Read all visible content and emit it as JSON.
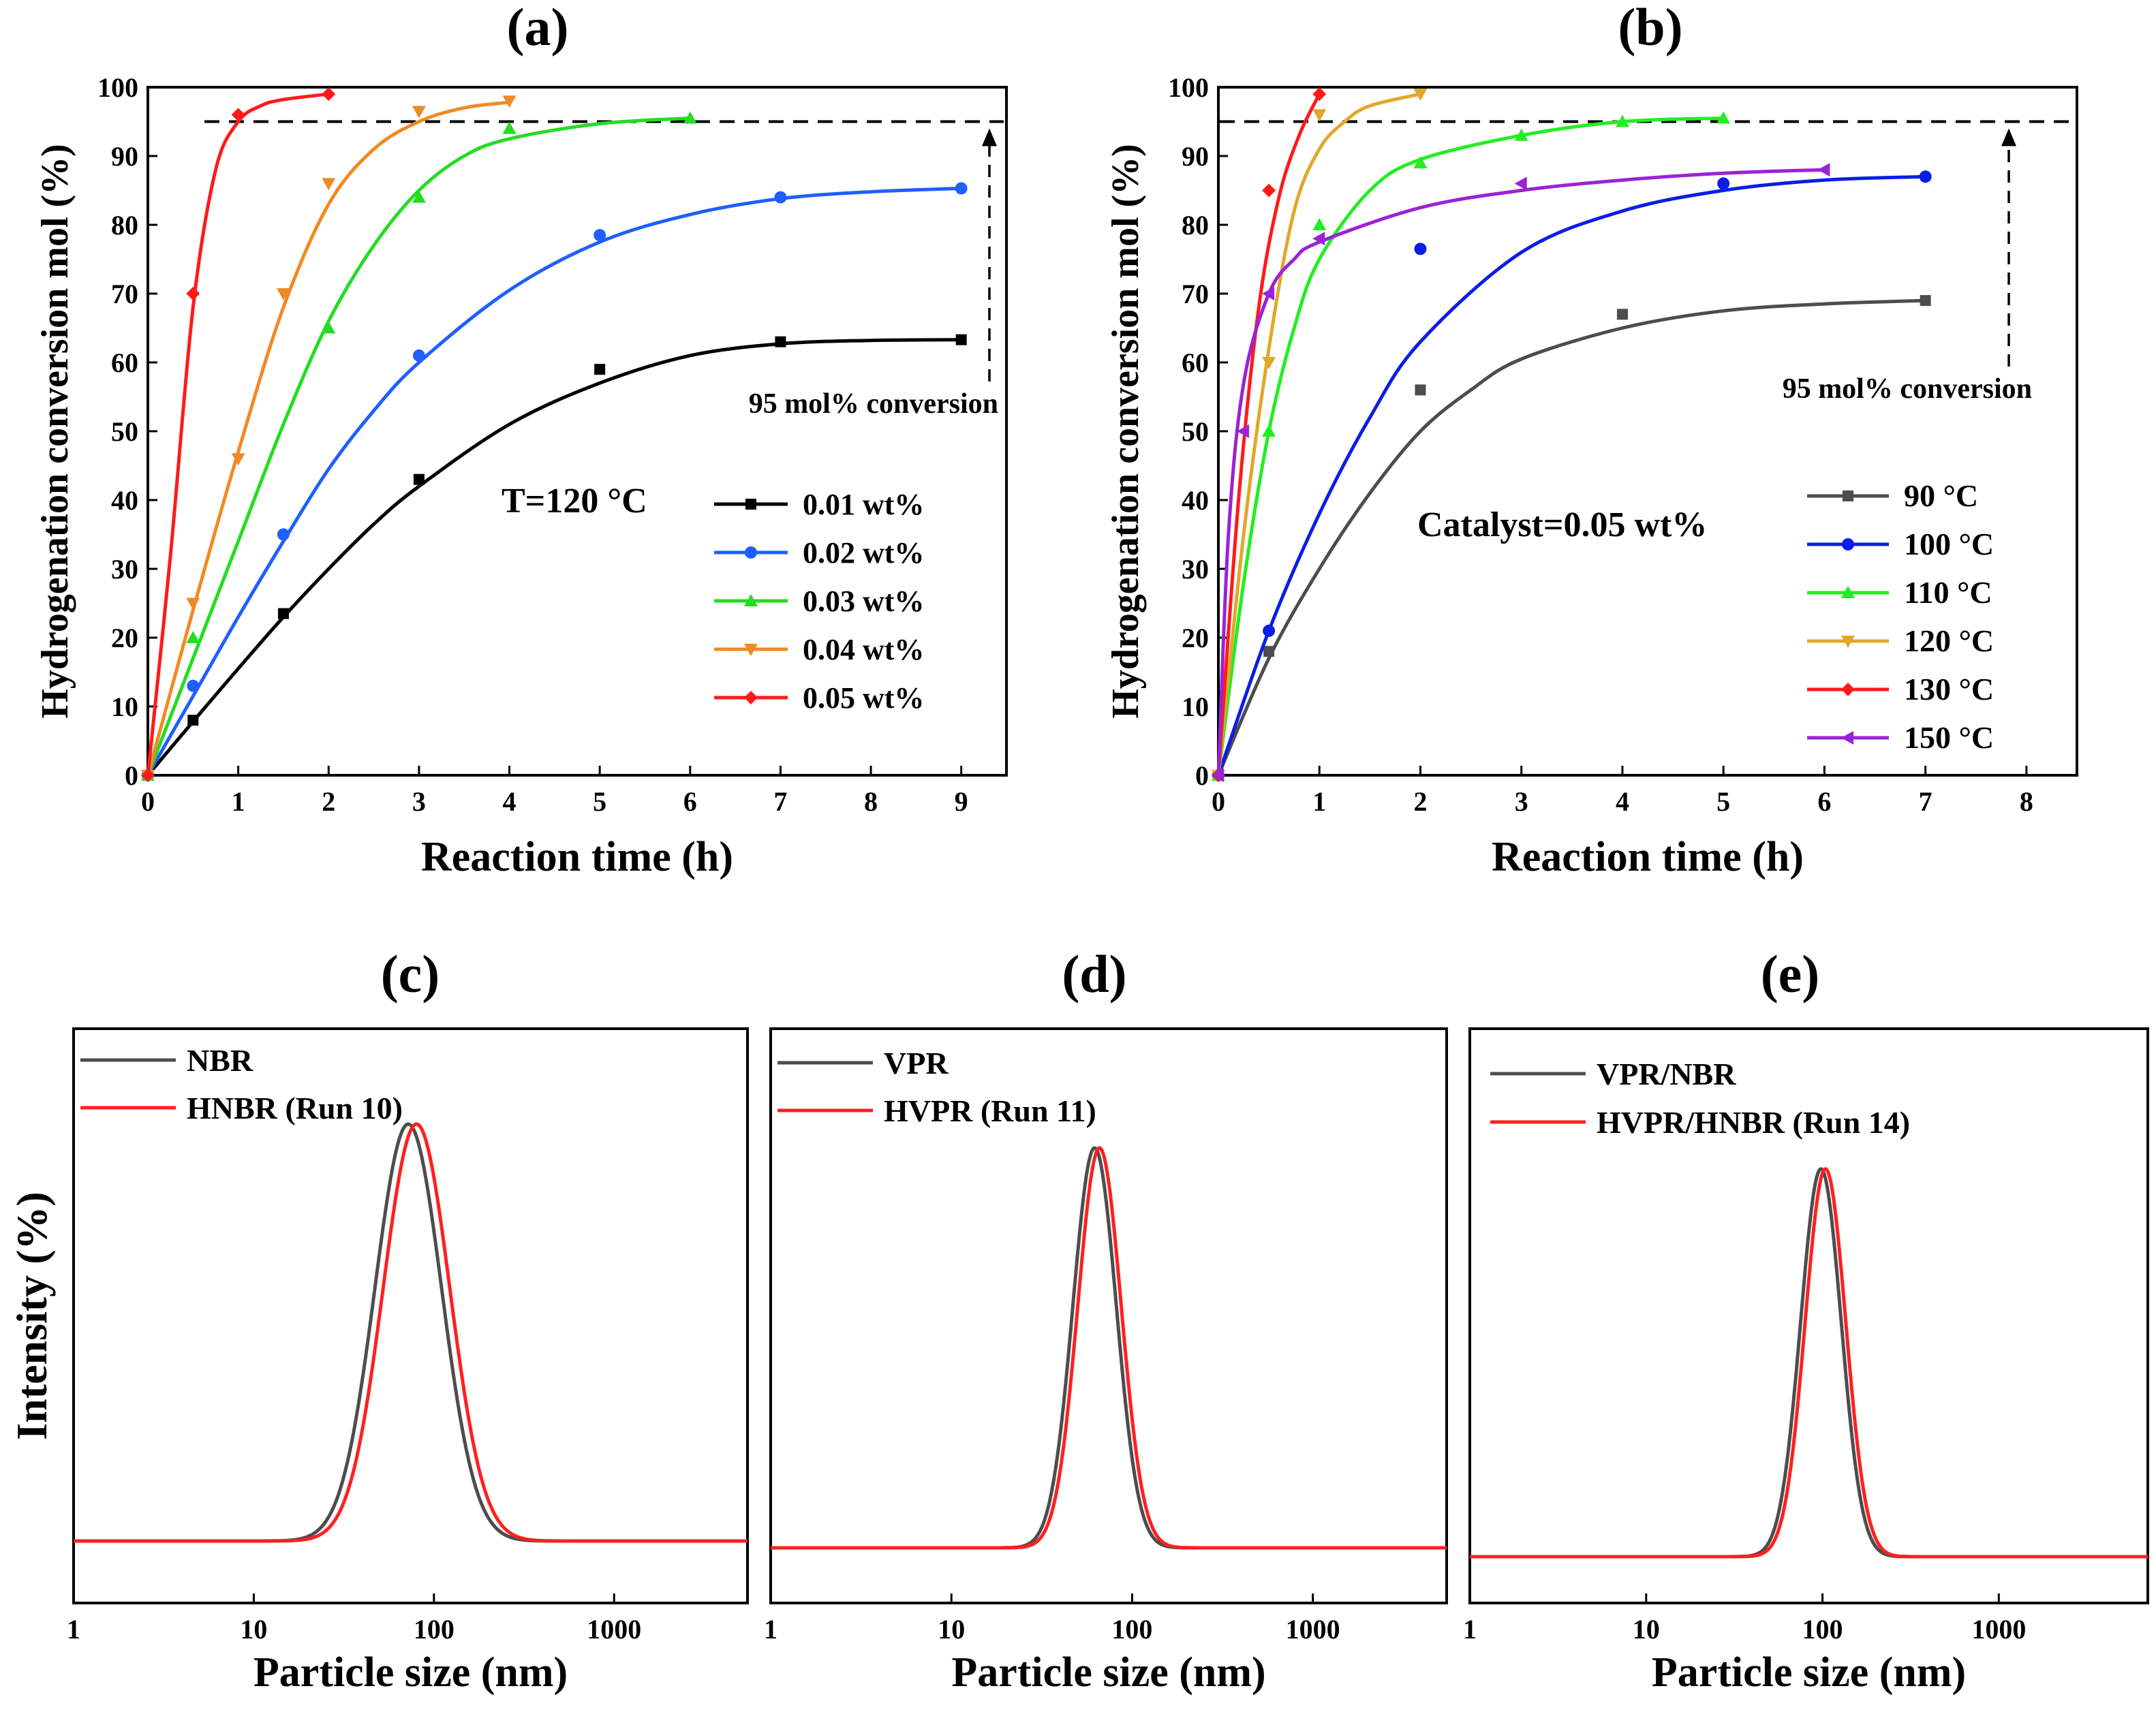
{
  "chart_data": [
    {
      "id": "a",
      "type": "line",
      "panel_label": "(a)",
      "xlabel": "Reaction time (h)",
      "ylabel": "Hydrogenation conversion mol (%)",
      "xlim": [
        0,
        9.5
      ],
      "ylim": [
        0,
        100
      ],
      "xticks": [
        0,
        1,
        2,
        3,
        4,
        5,
        6,
        7,
        8,
        9
      ],
      "yticks": [
        0,
        10,
        20,
        30,
        40,
        50,
        60,
        70,
        80,
        90,
        100
      ],
      "grid": false,
      "legend_position": "center-right",
      "annotation": "T=120 °C",
      "threshold": {
        "y": 95,
        "label": "95 mol% conversion"
      },
      "series": [
        {
          "name": "0.01 wt%",
          "color": "#000000",
          "marker": "square",
          "x": [
            0,
            0.5,
            1.5,
            3,
            5,
            7,
            9
          ],
          "y": [
            0,
            8,
            23.5,
            43,
            59,
            63,
            63.3
          ],
          "fit": [
            [
              0,
              0
            ],
            [
              0.5,
              7.8
            ],
            [
              1,
              15.5
            ],
            [
              1.5,
              23
            ],
            [
              2,
              30
            ],
            [
              2.5,
              36.5
            ],
            [
              3,
              42
            ],
            [
              4,
              51
            ],
            [
              5,
              57
            ],
            [
              6,
              61
            ],
            [
              7,
              62.7
            ],
            [
              8,
              63.2
            ],
            [
              9,
              63.3
            ]
          ]
        },
        {
          "name": "0.02 wt%",
          "color": "#1f5fff",
          "marker": "circle",
          "x": [
            0,
            0.5,
            1.5,
            3,
            5,
            7,
            9
          ],
          "y": [
            0,
            13,
            35,
            61,
            78.5,
            84,
            85.3
          ],
          "fit": [
            [
              0,
              0
            ],
            [
              0.5,
              11.5
            ],
            [
              1,
              23
            ],
            [
              1.5,
              34
            ],
            [
              2,
              44.5
            ],
            [
              2.5,
              53
            ],
            [
              3,
              60
            ],
            [
              4,
              70.5
            ],
            [
              5,
              77.5
            ],
            [
              6,
              81.5
            ],
            [
              7,
              83.8
            ],
            [
              8,
              84.8
            ],
            [
              9,
              85.3
            ]
          ]
        },
        {
          "name": "0.03 wt%",
          "color": "#22dd22",
          "marker": "triangle-up",
          "x": [
            0,
            0.5,
            2,
            3,
            4,
            6
          ],
          "y": [
            0,
            20,
            65,
            84,
            94,
            95.5
          ],
          "fit": [
            [
              0,
              0
            ],
            [
              0.5,
              17
            ],
            [
              1,
              34
            ],
            [
              1.5,
              51
            ],
            [
              2,
              66
            ],
            [
              2.5,
              77
            ],
            [
              3,
              85
            ],
            [
              3.5,
              90
            ],
            [
              4,
              92.5
            ],
            [
              5,
              94.7
            ],
            [
              6,
              95.5
            ]
          ]
        },
        {
          "name": "0.04 wt%",
          "color": "#f08a24",
          "marker": "triangle-down",
          "x": [
            0,
            0.5,
            1,
            1.5,
            2,
            3,
            4
          ],
          "y": [
            0,
            25,
            46,
            70,
            86,
            96.5,
            98
          ],
          "fit": [
            [
              0,
              0
            ],
            [
              0.5,
              24
            ],
            [
              1,
              47
            ],
            [
              1.5,
              68
            ],
            [
              2,
              83
            ],
            [
              2.5,
              91
            ],
            [
              3,
              95
            ],
            [
              3.5,
              97
            ],
            [
              4,
              97.8
            ]
          ]
        },
        {
          "name": "0.05 wt%",
          "color": "#ff1a1a",
          "marker": "diamond",
          "x": [
            0,
            0.5,
            1,
            2
          ],
          "y": [
            0,
            70,
            96,
            99
          ],
          "fit": [
            [
              0,
              0
            ],
            [
              0.25,
              32
            ],
            [
              0.5,
              68
            ],
            [
              0.75,
              88
            ],
            [
              1,
              95
            ],
            [
              1.25,
              97.3
            ],
            [
              1.5,
              98.2
            ],
            [
              2,
              99
            ]
          ]
        }
      ]
    },
    {
      "id": "b",
      "type": "line",
      "panel_label": "(b)",
      "xlabel": "Reaction time (h)",
      "ylabel": "Hydrogenation conversion mol (%)",
      "xlim": [
        0,
        8.5
      ],
      "ylim": [
        0,
        100
      ],
      "xticks": [
        0,
        1,
        2,
        3,
        4,
        5,
        6,
        7,
        8
      ],
      "yticks": [
        0,
        10,
        20,
        30,
        40,
        50,
        60,
        70,
        80,
        90,
        100
      ],
      "grid": false,
      "legend_position": "bottom-right",
      "annotation": "Catalyst=0.05 wt%",
      "threshold": {
        "y": 95,
        "label": "95 mol% conversion"
      },
      "series": [
        {
          "name": " 90  °C",
          "color": "#4d4d4d",
          "marker": "square",
          "x": [
            0,
            0.5,
            2,
            4,
            7
          ],
          "y": [
            0,
            18,
            56,
            67,
            69
          ],
          "fit": [
            [
              0,
              0
            ],
            [
              0.5,
              17
            ],
            [
              1,
              30
            ],
            [
              1.5,
              41
            ],
            [
              2,
              50
            ],
            [
              2.5,
              56
            ],
            [
              3,
              60.5
            ],
            [
              4,
              65
            ],
            [
              5,
              67.5
            ],
            [
              6,
              68.5
            ],
            [
              7,
              69
            ]
          ]
        },
        {
          "name": "100 °C",
          "color": "#0a1ee6",
          "marker": "circle",
          "x": [
            0,
            0.5,
            2,
            5,
            7
          ],
          "y": [
            0,
            21,
            76.5,
            86,
            87
          ],
          "fit": [
            [
              0,
              0
            ],
            [
              0.5,
              21
            ],
            [
              1,
              38
            ],
            [
              1.5,
              52
            ],
            [
              2,
              63
            ],
            [
              3,
              76
            ],
            [
              4,
              82
            ],
            [
              5,
              85
            ],
            [
              6,
              86.5
            ],
            [
              7,
              87
            ]
          ]
        },
        {
          "name": "110 °C",
          "color": "#22ee22",
          "marker": "triangle-up",
          "x": [
            0,
            0.5,
            1,
            2,
            3,
            4,
            5
          ],
          "y": [
            0,
            50,
            80,
            89,
            93,
            95,
            95.5
          ],
          "fit": [
            [
              0,
              0
            ],
            [
              0.25,
              28
            ],
            [
              0.5,
              50
            ],
            [
              0.75,
              65
            ],
            [
              1,
              75
            ],
            [
              1.5,
              85
            ],
            [
              2,
              89.5
            ],
            [
              3,
              93
            ],
            [
              4,
              95
            ],
            [
              5,
              95.5
            ]
          ]
        },
        {
          "name": "120 °C",
          "color": "#e0a82a",
          "marker": "triangle-down",
          "x": [
            0,
            0.5,
            1,
            2
          ],
          "y": [
            0,
            60,
            96,
            99
          ],
          "fit": [
            [
              0,
              0
            ],
            [
              0.25,
              35
            ],
            [
              0.5,
              62
            ],
            [
              0.75,
              82
            ],
            [
              1,
              91
            ],
            [
              1.25,
              95
            ],
            [
              1.5,
              97.3
            ],
            [
              2,
              99
            ]
          ]
        },
        {
          "name": "130 °C",
          "color": "#ff1a1a",
          "marker": "diamond",
          "x": [
            0,
            0.5,
            1
          ],
          "y": [
            0,
            85,
            99
          ],
          "fit": [
            [
              0,
              0
            ],
            [
              0.2,
              40
            ],
            [
              0.4,
              68
            ],
            [
              0.6,
              84
            ],
            [
              0.8,
              93
            ],
            [
              1,
              99
            ]
          ]
        },
        {
          "name": "150 °C",
          "color": "#9b22d6",
          "marker": "triangle-left",
          "x": [
            0,
            0.25,
            0.5,
            1,
            3,
            6
          ],
          "y": [
            0,
            50,
            70,
            78,
            86,
            88
          ],
          "fit": [
            [
              0,
              0
            ],
            [
              0.1,
              35
            ],
            [
              0.25,
              57
            ],
            [
              0.5,
              70
            ],
            [
              0.75,
              75
            ],
            [
              1,
              77.5
            ],
            [
              2,
              82.5
            ],
            [
              3,
              85
            ],
            [
              4,
              86.5
            ],
            [
              5,
              87.5
            ],
            [
              6,
              88
            ]
          ]
        }
      ]
    },
    {
      "id": "c",
      "type": "line",
      "panel_label": "(c)",
      "xlabel": "Particle size (nm)",
      "ylabel": "Intensity (%)",
      "xscale": "log",
      "xlim": [
        1,
        5500
      ],
      "xticks": [
        1,
        10,
        100,
        1000
      ],
      "xtick_labels": [
        "1",
        "10",
        "100",
        "1000"
      ],
      "ylim": [
        0,
        1.4
      ],
      "yticks_shown": false,
      "legend_position": "top-left",
      "series": [
        {
          "name": "NBR",
          "color": "#4d4d4d",
          "peak_nm": 72,
          "height": 1.0,
          "log_sigma": 0.185
        },
        {
          "name": "HNBR (Run 10)",
          "color": "#ff2020",
          "peak_nm": 80,
          "height": 1.0,
          "log_sigma": 0.185
        }
      ]
    },
    {
      "id": "d",
      "type": "line",
      "panel_label": "(d)",
      "xlabel": "Particle size (nm)",
      "ylabel": "",
      "xscale": "log",
      "xlim": [
        1,
        5500
      ],
      "xticks": [
        1,
        10,
        100,
        1000
      ],
      "xtick_labels": [
        "1",
        "10",
        "100",
        "1000"
      ],
      "ylim": [
        0,
        1.4
      ],
      "yticks_shown": false,
      "legend_position": "top-left",
      "series": [
        {
          "name": "VPR",
          "color": "#4d4d4d",
          "peak_nm": 62,
          "height": 0.98,
          "log_sigma": 0.12
        },
        {
          "name": "HVPR (Run 11)",
          "color": "#ff2020",
          "peak_nm": 66,
          "height": 0.98,
          "log_sigma": 0.12
        }
      ]
    },
    {
      "id": "e",
      "type": "line",
      "panel_label": "(e)",
      "xlabel": "Particle size (nm)",
      "ylabel": "",
      "xscale": "log",
      "xlim": [
        1,
        7000
      ],
      "xticks": [
        1,
        10,
        100,
        1000
      ],
      "xtick_labels": [
        "1",
        "10",
        "100",
        "1000"
      ],
      "ylim": [
        0,
        1.4
      ],
      "yticks_shown": false,
      "legend_position": "top-left",
      "series": [
        {
          "name": "VPR/NBR",
          "color": "#4d4d4d",
          "peak_nm": 98,
          "height": 0.96,
          "log_sigma": 0.115
        },
        {
          "name": "HVPR/HNBR (Run 14)",
          "color": "#ff2020",
          "peak_nm": 104,
          "height": 0.96,
          "log_sigma": 0.115
        }
      ]
    }
  ]
}
